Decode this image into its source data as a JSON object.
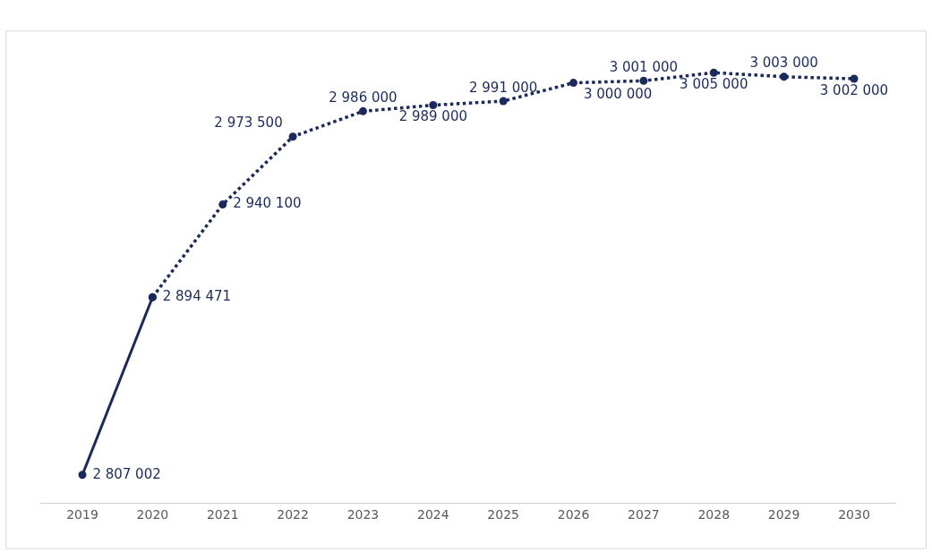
{
  "chart_data": {
    "type": "line",
    "categories": [
      "2019",
      "2020",
      "2021",
      "2022",
      "2023",
      "2024",
      "2025",
      "2026",
      "2027",
      "2028",
      "2029",
      "2030"
    ],
    "tick_labels": "x",
    "marker": "circle",
    "series": [
      {
        "color": "#1b2a5e",
        "line_style": "solid",
        "values": [
          2807002,
          2894471,
          null,
          null,
          null,
          null,
          null,
          null,
          null,
          null,
          null,
          null
        ],
        "value_labels": [
          "2 807 002",
          "2 894 471",
          null,
          null,
          null,
          null,
          null,
          null,
          null,
          null,
          null,
          null
        ]
      },
      {
        "color": "#1b2a5e",
        "line_style": "dotted",
        "values": [
          null,
          2894471,
          2940100,
          2973500,
          2986000,
          2989000,
          2991000,
          3000000,
          3001000,
          3005000,
          3003000,
          3002000
        ],
        "value_labels": [
          null,
          null,
          "2 940 100",
          "2 973 500",
          "2 986 000",
          "2 989 000",
          "2 991 000",
          "3 000 000",
          "3 001 000",
          "3 005 000",
          "3 003 000",
          "3 002 000"
        ]
      }
    ]
  }
}
